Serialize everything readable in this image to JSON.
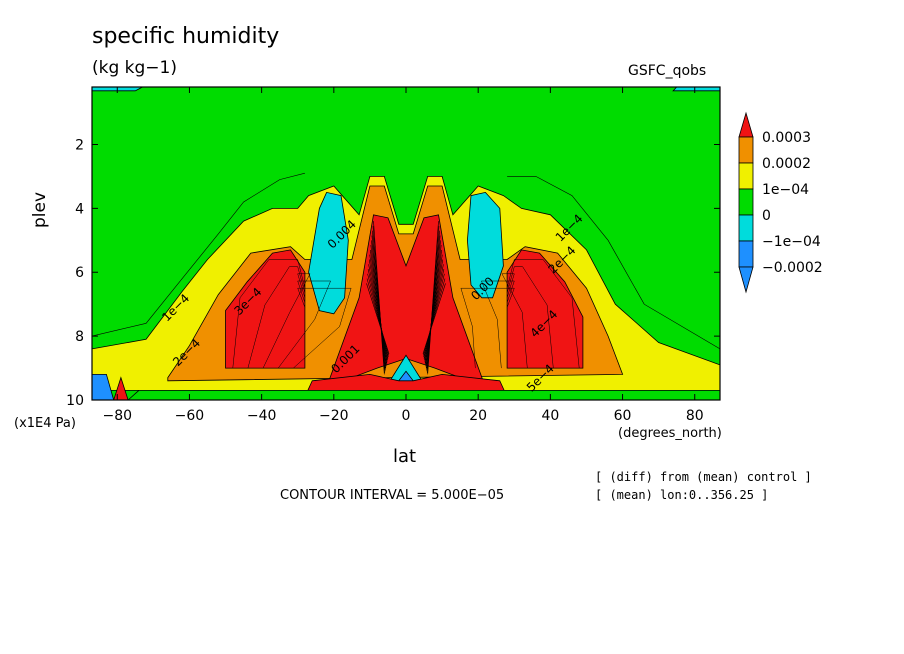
{
  "header": {
    "title": "specific humidity",
    "units": "(kg kg−1)",
    "model": "GSFC_qobs"
  },
  "footer": {
    "contour_interval": "CONTOUR INTERVAL = 5.000E−05",
    "note_diff": "[ (diff) from (mean) control ]",
    "note_mean": "[ (mean) lon:0..356.25 ]"
  },
  "colors": {
    "lt_neg2": "#1e90ff",
    "neg1": "#00dcdc",
    "zero": "#00dc00",
    "pos1": "#f0f000",
    "pos2": "#f09000",
    "gt_pos3": "#f01414"
  },
  "chart_data": {
    "type": "heatmap",
    "title": "specific humidity",
    "units": "(kg kg−1)",
    "xlabel": "lat",
    "xunit": "(degrees_north)",
    "ylabel": "plev",
    "yunit": "(x1E4 Pa)",
    "xlim": [
      -87,
      87
    ],
    "ylim": [
      10,
      0.2
    ],
    "x_ticks": [
      -80,
      -60,
      -40,
      -20,
      0,
      20,
      40,
      60,
      80
    ],
    "y_ticks": [
      2,
      4,
      6,
      8,
      10
    ],
    "contour_interval": 5e-05,
    "colorbar": {
      "labels": [
        "0.0003",
        "0.0002",
        "1e−04",
        "0",
        "−1e−04",
        "−0.0002"
      ],
      "bins": [
        {
          "min": 0.0003,
          "color": "#f01414"
        },
        {
          "min": 0.0002,
          "max": 0.0003,
          "color": "#f09000"
        },
        {
          "min": 0.0001,
          "max": 0.0002,
          "color": "#f0f000"
        },
        {
          "min": 0,
          "max": 0.0001,
          "color": "#00dc00"
        },
        {
          "min": -0.0001,
          "max": 0,
          "color": "#00dcdc"
        },
        {
          "min": -0.0002,
          "max": -0.0001,
          "color": "#1e90ff"
        },
        {
          "max": -0.0002,
          "color": "#1e90ff"
        }
      ]
    },
    "regions": [
      {
        "class": "pos1",
        "lat_range": [
          -87,
          87
        ],
        "plev_range": [
          3.0,
          10.0
        ],
        "note": "broad positive dome"
      },
      {
        "class": "pos2",
        "lat_range": [
          -60,
          55
        ],
        "plev_range": [
          5.0,
          9.2
        ]
      },
      {
        "class": "gt_pos3",
        "lat_range": [
          -48,
          -28
        ],
        "plev_range": [
          5.4,
          9.0
        ]
      },
      {
        "class": "gt_pos3",
        "lat_range": [
          -12,
          12
        ],
        "plev_range": [
          4.2,
          9.5
        ]
      },
      {
        "class": "gt_pos3",
        "lat_range": [
          28,
          48
        ],
        "plev_range": [
          5.4,
          9.0
        ]
      },
      {
        "class": "neg1",
        "lat_range": [
          -27,
          -17
        ],
        "plev_range": [
          3.5,
          7.3
        ]
      },
      {
        "class": "neg1",
        "lat_range": [
          17,
          27
        ],
        "plev_range": [
          3.5,
          6.8
        ]
      },
      {
        "class": "neg1",
        "lat_range": [
          -2,
          2
        ],
        "plev_range": [
          8.8,
          9.7
        ]
      },
      {
        "class": "lt_neg2",
        "lat_range": [
          -87,
          -83
        ],
        "plev_range": [
          9.2,
          10.0
        ]
      }
    ],
    "contour_labels": [
      {
        "text": "1e−4",
        "lat": -63,
        "plev": 7.2
      },
      {
        "text": "2e−4",
        "lat": -60,
        "plev": 8.6
      },
      {
        "text": "3e−4",
        "lat": -43,
        "plev": 7.0
      },
      {
        "text": "0.001",
        "lat": -16,
        "plev": 8.8
      },
      {
        "text": "0.004",
        "lat": -17,
        "plev": 4.9
      },
      {
        "text": "0.00",
        "lat": 22,
        "plev": 6.6
      },
      {
        "text": "1e−4",
        "lat": 46,
        "plev": 4.7
      },
      {
        "text": "2e−4",
        "lat": 44,
        "plev": 5.7
      },
      {
        "text": "4e−4",
        "lat": 39,
        "plev": 7.7
      },
      {
        "text": "5e−4",
        "lat": 38,
        "plev": 9.4
      }
    ]
  }
}
